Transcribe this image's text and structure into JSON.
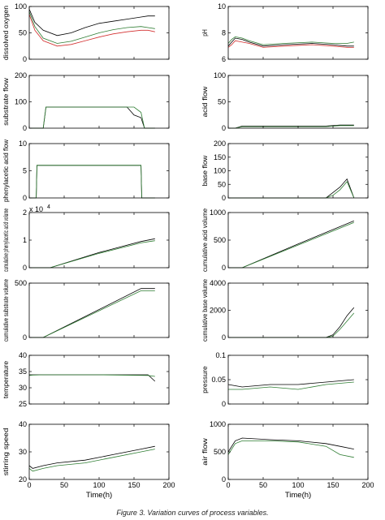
{
  "caption": "Figure 3. Variation curves of process variables.",
  "series_colors": [
    "#000000",
    "#2e7d32",
    "#d32f2f",
    "#1e88e5",
    "#e91e63",
    "#8e24aa",
    "#66bb6a",
    "#00acc1",
    "#fb8c00",
    "#9e9d24"
  ],
  "chart_data": [
    {
      "type": "line",
      "ylabel": "dissolved oxygen",
      "xlabel": "",
      "xlim": [
        0,
        200
      ],
      "ylim": [
        0,
        100
      ],
      "yticks": [
        0,
        50,
        100
      ],
      "xticks": [
        0,
        50,
        100,
        150,
        200
      ],
      "x": [
        0,
        8,
        20,
        40,
        60,
        80,
        100,
        120,
        140,
        160,
        170,
        180
      ],
      "series": [
        {
          "values": [
            95,
            70,
            55,
            45,
            50,
            60,
            68,
            72,
            76,
            80,
            82,
            82
          ]
        },
        {
          "values": [
            90,
            62,
            40,
            30,
            34,
            42,
            50,
            56,
            60,
            62,
            60,
            58
          ]
        },
        {
          "values": [
            85,
            55,
            35,
            25,
            28,
            35,
            42,
            48,
            52,
            55,
            55,
            52
          ]
        }
      ]
    },
    {
      "type": "line",
      "ylabel": "pH",
      "xlabel": "",
      "xlim": [
        0,
        200
      ],
      "ylim": [
        6,
        10
      ],
      "yticks": [
        6,
        8,
        10
      ],
      "xticks": [
        0,
        50,
        100,
        150,
        200
      ],
      "x": [
        0,
        5,
        10,
        20,
        30,
        50,
        80,
        120,
        150,
        170,
        180
      ],
      "series": [
        {
          "values": [
            7.0,
            7.3,
            7.6,
            7.5,
            7.3,
            7.0,
            7.1,
            7.2,
            7.1,
            7.0,
            7.0
          ]
        },
        {
          "values": [
            7.2,
            7.5,
            7.7,
            7.6,
            7.4,
            7.1,
            7.2,
            7.3,
            7.2,
            7.2,
            7.3
          ]
        },
        {
          "values": [
            6.9,
            7.1,
            7.4,
            7.3,
            7.2,
            6.9,
            7.0,
            7.1,
            7.0,
            6.9,
            6.9
          ]
        }
      ]
    },
    {
      "type": "line",
      "ylabel": "substrate flow",
      "xlabel": "",
      "xlim": [
        0,
        200
      ],
      "ylim": [
        0,
        200
      ],
      "yticks": [
        0,
        100,
        200
      ],
      "xticks": [
        0,
        50,
        100,
        150,
        200
      ],
      "x": [
        0,
        20,
        24,
        50,
        100,
        140,
        150,
        160,
        165,
        180
      ],
      "series": [
        {
          "values": [
            0,
            0,
            80,
            80,
            80,
            80,
            50,
            40,
            0,
            0
          ]
        },
        {
          "values": [
            0,
            0,
            80,
            80,
            80,
            80,
            80,
            60,
            0,
            0
          ]
        }
      ]
    },
    {
      "type": "line",
      "ylabel": "acid flow",
      "xlabel": "",
      "xlim": [
        0,
        200
      ],
      "ylim": [
        0,
        100
      ],
      "yticks": [
        0,
        50,
        100
      ],
      "xticks": [
        0,
        50,
        100,
        150,
        200
      ],
      "x": [
        0,
        5,
        10,
        20,
        100,
        140,
        160,
        180
      ],
      "series": [
        {
          "values": [
            0,
            0,
            0,
            4,
            4,
            4,
            6,
            6
          ]
        },
        {
          "values": [
            0,
            0,
            0,
            3,
            3,
            3,
            5,
            5
          ]
        }
      ]
    },
    {
      "type": "line",
      "ylabel": "phenylacetic acid flow",
      "xlabel": "",
      "xlim": [
        0,
        200
      ],
      "ylim": [
        0,
        10
      ],
      "yticks": [
        0,
        5,
        10
      ],
      "xticks": [
        0,
        50,
        100,
        150,
        200
      ],
      "x": [
        0,
        10,
        11,
        80,
        140,
        160,
        161,
        180
      ],
      "series": [
        {
          "values": [
            0,
            0,
            6,
            6,
            6,
            6,
            0,
            0
          ]
        },
        {
          "values": [
            0,
            0,
            6,
            6,
            6,
            6,
            0,
            0
          ]
        }
      ]
    },
    {
      "type": "line",
      "ylabel": "base flow",
      "xlabel": "",
      "xlim": [
        0,
        200
      ],
      "ylim": [
        0,
        200
      ],
      "yticks": [
        0,
        50,
        100,
        150,
        200
      ],
      "xticks": [
        0,
        50,
        100,
        150,
        200
      ],
      "x": [
        0,
        140,
        150,
        160,
        170,
        180
      ],
      "series": [
        {
          "values": [
            0,
            0,
            20,
            40,
            70,
            0
          ]
        },
        {
          "values": [
            0,
            0,
            10,
            30,
            60,
            0
          ]
        }
      ]
    },
    {
      "type": "line",
      "ylabel": "cumulative phenylacetic acid volume",
      "xlabel": "",
      "xlim": [
        0,
        200
      ],
      "ylim": [
        0,
        20000
      ],
      "yticks": [
        0,
        10000,
        20000
      ],
      "ytick_labels": [
        "0",
        "1",
        "2"
      ],
      "multiplier": "x 10",
      "multiplier_exp": "4",
      "xticks": [
        0,
        50,
        100,
        150,
        200
      ],
      "x": [
        0,
        30,
        100,
        160,
        180
      ],
      "series": [
        {
          "values": [
            0,
            0,
            5500,
            9500,
            10500
          ]
        },
        {
          "values": [
            0,
            0,
            5200,
            9000,
            9800
          ]
        }
      ]
    },
    {
      "type": "line",
      "ylabel": "cumulative acid volume",
      "xlabel": "",
      "xlim": [
        0,
        200
      ],
      "ylim": [
        0,
        1000
      ],
      "yticks": [
        0,
        500,
        1000
      ],
      "xticks": [
        0,
        50,
        100,
        150,
        200
      ],
      "x": [
        0,
        20,
        100,
        180
      ],
      "series": [
        {
          "values": [
            0,
            0,
            430,
            850
          ]
        },
        {
          "values": [
            0,
            0,
            410,
            820
          ]
        }
      ]
    },
    {
      "type": "line",
      "ylabel": "cumulative substrate volume",
      "xlabel": "",
      "xlim": [
        0,
        200
      ],
      "ylim": [
        0,
        500
      ],
      "yticks": [
        0,
        500
      ],
      "xticks": [
        0,
        50,
        100,
        150,
        200
      ],
      "x": [
        0,
        20,
        160,
        180
      ],
      "series": [
        {
          "values": [
            0,
            0,
            450,
            450
          ]
        },
        {
          "values": [
            0,
            0,
            430,
            430
          ]
        }
      ]
    },
    {
      "type": "line",
      "ylabel": "cumulative base volume",
      "xlabel": "",
      "xlim": [
        0,
        200
      ],
      "ylim": [
        0,
        4000
      ],
      "yticks": [
        0,
        2000,
        4000
      ],
      "xticks": [
        0,
        50,
        100,
        150,
        200
      ],
      "x": [
        0,
        140,
        150,
        160,
        170,
        180
      ],
      "series": [
        {
          "values": [
            0,
            0,
            200,
            800,
            1600,
            2200
          ]
        },
        {
          "values": [
            0,
            0,
            100,
            600,
            1200,
            1800
          ]
        }
      ]
    },
    {
      "type": "line",
      "ylabel": "temperature",
      "xlabel": "",
      "xlim": [
        0,
        200
      ],
      "ylim": [
        25,
        40
      ],
      "yticks": [
        25,
        30,
        35,
        40
      ],
      "xticks": [
        0,
        50,
        100,
        150,
        200
      ],
      "x": [
        0,
        5,
        20,
        100,
        170,
        180
      ],
      "series": [
        {
          "values": [
            34,
            34,
            34,
            34,
            34,
            32
          ]
        },
        {
          "values": [
            33.8,
            33.9,
            34,
            34,
            33.8,
            33.5
          ]
        }
      ]
    },
    {
      "type": "line",
      "ylabel": "pressure",
      "xlabel": "",
      "xlim": [
        0,
        200
      ],
      "ylim": [
        0,
        0.1
      ],
      "yticks": [
        0,
        0.05,
        0.1
      ],
      "xticks": [
        0,
        50,
        100,
        150,
        200
      ],
      "x": [
        0,
        20,
        60,
        100,
        140,
        180
      ],
      "series": [
        {
          "values": [
            0.04,
            0.035,
            0.04,
            0.04,
            0.045,
            0.05
          ]
        },
        {
          "values": [
            0.03,
            0.03,
            0.035,
            0.03,
            0.04,
            0.045
          ]
        }
      ]
    },
    {
      "type": "line",
      "ylabel": "stirring speed",
      "xlabel": "Time(h)",
      "xlim": [
        0,
        200
      ],
      "ylim": [
        20,
        40
      ],
      "yticks": [
        20,
        30,
        40
      ],
      "xticks": [
        0,
        50,
        100,
        150,
        200
      ],
      "x": [
        0,
        5,
        20,
        40,
        80,
        120,
        160,
        180
      ],
      "series": [
        {
          "values": [
            25,
            24,
            25,
            26,
            27,
            29,
            31,
            32
          ]
        },
        {
          "values": [
            24,
            23,
            24,
            25,
            26,
            28,
            30,
            31
          ]
        }
      ]
    },
    {
      "type": "line",
      "ylabel": "air flow",
      "xlabel": "Time(h)",
      "xlim": [
        0,
        200
      ],
      "ylim": [
        0,
        1000
      ],
      "yticks": [
        0,
        500,
        1000
      ],
      "xticks": [
        0,
        50,
        100,
        150,
        200
      ],
      "x": [
        0,
        10,
        20,
        60,
        100,
        140,
        160,
        180
      ],
      "series": [
        {
          "values": [
            500,
            700,
            750,
            720,
            700,
            650,
            600,
            550
          ]
        },
        {
          "values": [
            450,
            650,
            700,
            700,
            680,
            600,
            450,
            400
          ]
        }
      ]
    }
  ]
}
